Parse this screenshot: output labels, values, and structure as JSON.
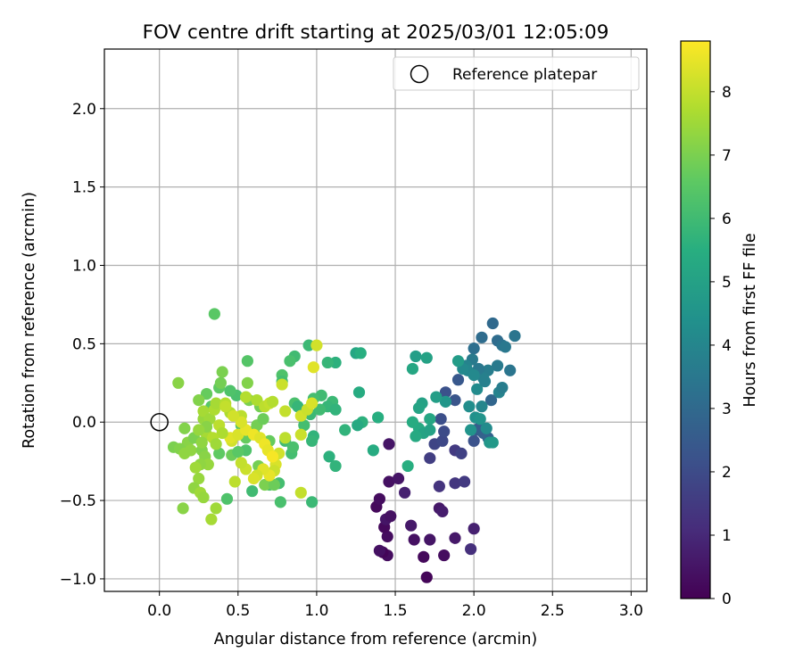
{
  "chart_data": {
    "type": "scatter",
    "title": "FOV centre drift starting at 2025/03/01 12:05:09",
    "xlabel": "Angular distance from reference (arcmin)",
    "ylabel": "Rotation from reference (arcmin)",
    "xlim": [
      -0.35,
      3.1
    ],
    "ylim": [
      -1.08,
      2.38
    ],
    "xticks": [
      0.0,
      0.5,
      1.0,
      1.5,
      2.0,
      2.5,
      3.0
    ],
    "xtick_labels": [
      "0.0",
      "0.5",
      "1.0",
      "1.5",
      "2.0",
      "2.5",
      "3.0"
    ],
    "yticks": [
      -1.0,
      -0.5,
      0.0,
      0.5,
      1.0,
      1.5,
      2.0
    ],
    "ytick_labels": [
      "−1.0",
      "−0.5",
      "0.0",
      "0.5",
      "1.0",
      "1.5",
      "2.0"
    ],
    "grid": true,
    "legend": {
      "placement": "top-right",
      "entries": [
        "Reference platepar"
      ]
    },
    "reference_point": {
      "name": "Reference platepar",
      "x": 0.0,
      "y": 0.0
    },
    "colorbar": {
      "label": "Hours from first FF file",
      "range": [
        0,
        8.8
      ],
      "ticks": [
        0,
        1,
        2,
        3,
        4,
        5,
        6,
        7,
        8
      ],
      "tick_labels": [
        "0",
        "1",
        "2",
        "3",
        "4",
        "5",
        "6",
        "7",
        "8"
      ],
      "colormap": "viridis"
    },
    "points": [
      {
        "x": 1.7,
        "y": -0.99,
        "c": 0.1
      },
      {
        "x": 1.68,
        "y": -0.86,
        "c": 0.2
      },
      {
        "x": 1.45,
        "y": -0.85,
        "c": 0.3
      },
      {
        "x": 1.42,
        "y": -0.83,
        "c": 0.1
      },
      {
        "x": 1.4,
        "y": -0.82,
        "c": 0.4
      },
      {
        "x": 1.81,
        "y": -0.85,
        "c": 0.3
      },
      {
        "x": 1.72,
        "y": -0.75,
        "c": 0.5
      },
      {
        "x": 1.88,
        "y": -0.74,
        "c": 0.6
      },
      {
        "x": 1.62,
        "y": -0.75,
        "c": 0.4
      },
      {
        "x": 1.45,
        "y": -0.73,
        "c": 0.3
      },
      {
        "x": 1.43,
        "y": -0.67,
        "c": 0.2
      },
      {
        "x": 1.44,
        "y": -0.62,
        "c": 0.5
      },
      {
        "x": 1.47,
        "y": -0.6,
        "c": 0.4
      },
      {
        "x": 1.6,
        "y": -0.66,
        "c": 0.6
      },
      {
        "x": 2.0,
        "y": -0.68,
        "c": 0.8
      },
      {
        "x": 1.38,
        "y": -0.54,
        "c": 0.2
      },
      {
        "x": 1.4,
        "y": -0.49,
        "c": 0.3
      },
      {
        "x": 1.46,
        "y": -0.38,
        "c": 0.4
      },
      {
        "x": 1.52,
        "y": -0.36,
        "c": 0.5
      },
      {
        "x": 1.78,
        "y": -0.55,
        "c": 0.6
      },
      {
        "x": 1.8,
        "y": -0.57,
        "c": 0.7
      },
      {
        "x": 1.56,
        "y": -0.45,
        "c": 0.8
      },
      {
        "x": 1.46,
        "y": -0.14,
        "c": 0.5
      },
      {
        "x": 1.98,
        "y": -0.81,
        "c": 1.2
      },
      {
        "x": 1.78,
        "y": -0.41,
        "c": 1.3
      },
      {
        "x": 1.88,
        "y": -0.39,
        "c": 1.4
      },
      {
        "x": 1.94,
        "y": -0.38,
        "c": 1.5
      },
      {
        "x": 1.72,
        "y": -0.23,
        "c": 1.6
      },
      {
        "x": 1.88,
        "y": -0.18,
        "c": 1.5
      },
      {
        "x": 1.92,
        "y": -0.2,
        "c": 1.7
      },
      {
        "x": 1.75,
        "y": -0.14,
        "c": 1.8
      },
      {
        "x": 1.8,
        "y": -0.12,
        "c": 1.9
      },
      {
        "x": 1.81,
        "y": -0.06,
        "c": 2.0
      },
      {
        "x": 1.79,
        "y": 0.02,
        "c": 2.1
      },
      {
        "x": 1.82,
        "y": 0.19,
        "c": 2.2
      },
      {
        "x": 1.88,
        "y": 0.14,
        "c": 2.3
      },
      {
        "x": 1.9,
        "y": 0.27,
        "c": 2.4
      },
      {
        "x": 2.0,
        "y": -0.12,
        "c": 2.2
      },
      {
        "x": 2.02,
        "y": -0.05,
        "c": 2.5
      },
      {
        "x": 2.03,
        "y": -0.04,
        "c": 2.6
      },
      {
        "x": 2.06,
        "y": -0.07,
        "c": 2.7
      },
      {
        "x": 2.09,
        "y": -0.1,
        "c": 2.8
      },
      {
        "x": 2.11,
        "y": 0.14,
        "c": 2.9
      },
      {
        "x": 2.12,
        "y": 0.63,
        "c": 3.0
      },
      {
        "x": 2.05,
        "y": 0.54,
        "c": 3.1
      },
      {
        "x": 2.0,
        "y": 0.47,
        "c": 3.2
      },
      {
        "x": 2.15,
        "y": 0.52,
        "c": 3.1
      },
      {
        "x": 2.18,
        "y": 0.49,
        "c": 3.3
      },
      {
        "x": 2.26,
        "y": 0.55,
        "c": 3.4
      },
      {
        "x": 2.2,
        "y": 0.48,
        "c": 3.5
      },
      {
        "x": 2.23,
        "y": 0.33,
        "c": 3.4
      },
      {
        "x": 2.15,
        "y": 0.36,
        "c": 3.6
      },
      {
        "x": 2.09,
        "y": 0.33,
        "c": 3.7
      },
      {
        "x": 2.06,
        "y": 0.28,
        "c": 3.8
      },
      {
        "x": 2.03,
        "y": 0.34,
        "c": 3.5
      },
      {
        "x": 1.99,
        "y": 0.4,
        "c": 3.6
      },
      {
        "x": 1.95,
        "y": 0.36,
        "c": 3.9
      },
      {
        "x": 1.96,
        "y": 0.33,
        "c": 4.0
      },
      {
        "x": 2.0,
        "y": 0.3,
        "c": 4.1
      },
      {
        "x": 2.02,
        "y": 0.21,
        "c": 4.2
      },
      {
        "x": 2.05,
        "y": 0.1,
        "c": 4.0
      },
      {
        "x": 1.97,
        "y": 0.1,
        "c": 4.3
      },
      {
        "x": 2.07,
        "y": 0.26,
        "c": 3.8
      },
      {
        "x": 2.16,
        "y": 0.19,
        "c": 3.9
      },
      {
        "x": 2.18,
        "y": 0.22,
        "c": 3.7
      },
      {
        "x": 2.01,
        "y": 0.03,
        "c": 4.4
      },
      {
        "x": 2.04,
        "y": 0.02,
        "c": 4.5
      },
      {
        "x": 2.08,
        "y": -0.04,
        "c": 4.2
      },
      {
        "x": 2.1,
        "y": -0.13,
        "c": 4.6
      },
      {
        "x": 2.12,
        "y": -0.13,
        "c": 4.7
      },
      {
        "x": 1.98,
        "y": -0.05,
        "c": 4.5
      },
      {
        "x": 1.93,
        "y": 0.34,
        "c": 4.1
      },
      {
        "x": 1.9,
        "y": 0.39,
        "c": 4.8
      },
      {
        "x": 1.82,
        "y": 0.13,
        "c": 4.6
      },
      {
        "x": 1.76,
        "y": 0.16,
        "c": 4.9
      },
      {
        "x": 1.67,
        "y": 0.12,
        "c": 5.0
      },
      {
        "x": 1.65,
        "y": 0.09,
        "c": 5.1
      },
      {
        "x": 1.63,
        "y": 0.42,
        "c": 4.9
      },
      {
        "x": 1.61,
        "y": 0.34,
        "c": 5.2
      },
      {
        "x": 1.7,
        "y": 0.41,
        "c": 5.0
      },
      {
        "x": 1.72,
        "y": 0.02,
        "c": 5.2
      },
      {
        "x": 1.65,
        "y": -0.04,
        "c": 5.3
      },
      {
        "x": 1.68,
        "y": -0.07,
        "c": 5.1
      },
      {
        "x": 1.61,
        "y": 0.0,
        "c": 5.4
      },
      {
        "x": 1.63,
        "y": -0.09,
        "c": 5.3
      },
      {
        "x": 1.58,
        "y": -0.28,
        "c": 5.5
      },
      {
        "x": 1.72,
        "y": -0.05,
        "c": 5.0
      },
      {
        "x": 1.36,
        "y": -0.18,
        "c": 5.4
      },
      {
        "x": 1.39,
        "y": 0.03,
        "c": 5.5
      },
      {
        "x": 1.29,
        "y": 0.0,
        "c": 5.6
      },
      {
        "x": 1.26,
        "y": -0.02,
        "c": 5.3
      },
      {
        "x": 1.27,
        "y": 0.19,
        "c": 5.4
      },
      {
        "x": 1.25,
        "y": 0.44,
        "c": 5.2
      },
      {
        "x": 1.28,
        "y": 0.44,
        "c": 5.5
      },
      {
        "x": 1.12,
        "y": 0.38,
        "c": 5.6
      },
      {
        "x": 1.07,
        "y": 0.38,
        "c": 5.8
      },
      {
        "x": 1.18,
        "y": -0.05,
        "c": 5.7
      },
      {
        "x": 1.1,
        "y": 0.13,
        "c": 5.9
      },
      {
        "x": 1.07,
        "y": 0.1,
        "c": 5.8
      },
      {
        "x": 1.12,
        "y": 0.08,
        "c": 5.7
      },
      {
        "x": 1.03,
        "y": 0.17,
        "c": 6.0
      },
      {
        "x": 0.98,
        "y": 0.15,
        "c": 6.1
      },
      {
        "x": 0.95,
        "y": 0.49,
        "c": 5.9
      },
      {
        "x": 0.86,
        "y": 0.42,
        "c": 6.0
      },
      {
        "x": 0.83,
        "y": 0.39,
        "c": 6.2
      },
      {
        "x": 0.78,
        "y": 0.3,
        "c": 6.3
      },
      {
        "x": 0.78,
        "y": 0.26,
        "c": 6.1
      },
      {
        "x": 0.86,
        "y": 0.12,
        "c": 6.2
      },
      {
        "x": 0.88,
        "y": 0.1,
        "c": 5.8
      },
      {
        "x": 0.92,
        "y": -0.02,
        "c": 6.1
      },
      {
        "x": 0.96,
        "y": 0.05,
        "c": 5.9
      },
      {
        "x": 1.02,
        "y": 0.08,
        "c": 6.0
      },
      {
        "x": 0.98,
        "y": -0.09,
        "c": 5.7
      },
      {
        "x": 0.97,
        "y": -0.12,
        "c": 5.8
      },
      {
        "x": 1.08,
        "y": -0.22,
        "c": 5.6
      },
      {
        "x": 1.12,
        "y": -0.28,
        "c": 5.7
      },
      {
        "x": 0.97,
        "y": -0.51,
        "c": 5.9
      },
      {
        "x": 0.77,
        "y": -0.51,
        "c": 6.2
      },
      {
        "x": 0.8,
        "y": -0.12,
        "c": 6.0
      },
      {
        "x": 0.84,
        "y": -0.2,
        "c": 6.1
      },
      {
        "x": 0.85,
        "y": -0.16,
        "c": 6.2
      },
      {
        "x": 0.7,
        "y": -0.4,
        "c": 6.3
      },
      {
        "x": 0.76,
        "y": -0.39,
        "c": 6.1
      },
      {
        "x": 0.59,
        "y": -0.44,
        "c": 6.0
      },
      {
        "x": 0.55,
        "y": -0.18,
        "c": 6.3
      },
      {
        "x": 0.52,
        "y": -0.02,
        "c": 6.4
      },
      {
        "x": 0.49,
        "y": 0.17,
        "c": 6.2
      },
      {
        "x": 0.45,
        "y": 0.2,
        "c": 6.3
      },
      {
        "x": 0.56,
        "y": 0.39,
        "c": 6.4
      },
      {
        "x": 0.35,
        "y": 0.69,
        "c": 6.5
      },
      {
        "x": 0.43,
        "y": -0.49,
        "c": 6.3
      },
      {
        "x": 0.38,
        "y": 0.22,
        "c": 6.6
      },
      {
        "x": 0.3,
        "y": 0.18,
        "c": 6.7
      },
      {
        "x": 0.33,
        "y": 0.1,
        "c": 6.5
      },
      {
        "x": 0.38,
        "y": -0.2,
        "c": 6.6
      },
      {
        "x": 0.46,
        "y": -0.21,
        "c": 6.8
      },
      {
        "x": 0.5,
        "y": -0.19,
        "c": 6.5
      },
      {
        "x": 0.55,
        "y": -0.1,
        "c": 6.7
      },
      {
        "x": 0.6,
        "y": -0.06,
        "c": 6.6
      },
      {
        "x": 0.62,
        "y": -0.02,
        "c": 6.9
      },
      {
        "x": 0.66,
        "y": 0.02,
        "c": 6.8
      },
      {
        "x": 0.7,
        "y": -0.12,
        "c": 6.7
      },
      {
        "x": 0.63,
        "y": -0.28,
        "c": 6.9
      },
      {
        "x": 0.67,
        "y": -0.4,
        "c": 7.0
      },
      {
        "x": 0.73,
        "y": -0.4,
        "c": 6.8
      },
      {
        "x": 0.64,
        "y": 0.1,
        "c": 6.9
      },
      {
        "x": 0.57,
        "y": 0.14,
        "c": 7.0
      },
      {
        "x": 0.56,
        "y": 0.25,
        "c": 7.1
      },
      {
        "x": 0.4,
        "y": 0.32,
        "c": 7.0
      },
      {
        "x": 0.39,
        "y": 0.25,
        "c": 6.9
      },
      {
        "x": 0.25,
        "y": 0.14,
        "c": 7.1
      },
      {
        "x": 0.12,
        "y": 0.25,
        "c": 7.2
      },
      {
        "x": 0.16,
        "y": -0.04,
        "c": 7.1
      },
      {
        "x": 0.18,
        "y": -0.13,
        "c": 7.2
      },
      {
        "x": 0.22,
        "y": -0.1,
        "c": 7.0
      },
      {
        "x": 0.2,
        "y": -0.18,
        "c": 7.3
      },
      {
        "x": 0.27,
        "y": -0.18,
        "c": 7.1
      },
      {
        "x": 0.29,
        "y": -0.22,
        "c": 7.2
      },
      {
        "x": 0.31,
        "y": -0.27,
        "c": 7.4
      },
      {
        "x": 0.26,
        "y": -0.27,
        "c": 7.3
      },
      {
        "x": 0.23,
        "y": -0.29,
        "c": 7.5
      },
      {
        "x": 0.25,
        "y": -0.36,
        "c": 7.4
      },
      {
        "x": 0.22,
        "y": -0.42,
        "c": 7.3
      },
      {
        "x": 0.26,
        "y": -0.45,
        "c": 7.5
      },
      {
        "x": 0.28,
        "y": -0.48,
        "c": 7.4
      },
      {
        "x": 0.15,
        "y": -0.55,
        "c": 7.2
      },
      {
        "x": 0.33,
        "y": -0.62,
        "c": 7.6
      },
      {
        "x": 0.36,
        "y": -0.55,
        "c": 7.5
      },
      {
        "x": 0.09,
        "y": -0.16,
        "c": 7.0
      },
      {
        "x": 0.13,
        "y": -0.17,
        "c": 7.1
      },
      {
        "x": 0.16,
        "y": -0.2,
        "c": 7.3
      },
      {
        "x": 0.28,
        "y": 0.02,
        "c": 7.4
      },
      {
        "x": 0.28,
        "y": 0.07,
        "c": 7.6
      },
      {
        "x": 0.32,
        "y": 0.02,
        "c": 7.5
      },
      {
        "x": 0.35,
        "y": 0.08,
        "c": 7.7
      },
      {
        "x": 0.36,
        "y": 0.12,
        "c": 7.6
      },
      {
        "x": 0.42,
        "y": 0.12,
        "c": 7.8
      },
      {
        "x": 0.45,
        "y": 0.06,
        "c": 7.7
      },
      {
        "x": 0.52,
        "y": 0.04,
        "c": 7.9
      },
      {
        "x": 0.55,
        "y": 0.16,
        "c": 7.8
      },
      {
        "x": 0.62,
        "y": 0.14,
        "c": 7.7
      },
      {
        "x": 0.67,
        "y": 0.1,
        "c": 7.9
      },
      {
        "x": 0.7,
        "y": 0.12,
        "c": 8.0
      },
      {
        "x": 0.72,
        "y": 0.13,
        "c": 7.8
      },
      {
        "x": 0.78,
        "y": 0.24,
        "c": 8.1
      },
      {
        "x": 0.8,
        "y": 0.07,
        "c": 8.0
      },
      {
        "x": 0.9,
        "y": 0.04,
        "c": 8.2
      },
      {
        "x": 0.94,
        "y": 0.08,
        "c": 8.1
      },
      {
        "x": 0.97,
        "y": 0.12,
        "c": 8.3
      },
      {
        "x": 0.98,
        "y": 0.35,
        "c": 8.4
      },
      {
        "x": 1.0,
        "y": 0.49,
        "c": 8.2
      },
      {
        "x": 0.9,
        "y": -0.08,
        "c": 8.1
      },
      {
        "x": 0.9,
        "y": -0.45,
        "c": 8.0
      },
      {
        "x": 0.8,
        "y": -0.1,
        "c": 7.9
      },
      {
        "x": 0.76,
        "y": -0.2,
        "c": 8.2
      },
      {
        "x": 0.74,
        "y": -0.27,
        "c": 8.3
      },
      {
        "x": 0.73,
        "y": -0.31,
        "c": 8.1
      },
      {
        "x": 0.7,
        "y": -0.34,
        "c": 8.5
      },
      {
        "x": 0.66,
        "y": -0.3,
        "c": 8.4
      },
      {
        "x": 0.62,
        "y": -0.34,
        "c": 8.2
      },
      {
        "x": 0.6,
        "y": -0.36,
        "c": 8.3
      },
      {
        "x": 0.55,
        "y": -0.3,
        "c": 8.1
      },
      {
        "x": 0.52,
        "y": -0.26,
        "c": 8.0
      },
      {
        "x": 0.48,
        "y": -0.38,
        "c": 7.9
      },
      {
        "x": 0.46,
        "y": -0.12,
        "c": 8.2
      },
      {
        "x": 0.45,
        "y": -0.1,
        "c": 8.4
      },
      {
        "x": 0.5,
        "y": -0.08,
        "c": 8.3
      },
      {
        "x": 0.55,
        "y": -0.05,
        "c": 8.5
      },
      {
        "x": 0.6,
        "y": -0.08,
        "c": 8.6
      },
      {
        "x": 0.64,
        "y": -0.1,
        "c": 8.4
      },
      {
        "x": 0.67,
        "y": -0.14,
        "c": 8.6
      },
      {
        "x": 0.69,
        "y": -0.18,
        "c": 8.5
      },
      {
        "x": 0.72,
        "y": -0.22,
        "c": 8.7
      },
      {
        "x": 0.52,
        "y": 0.0,
        "c": 8.3
      },
      {
        "x": 0.47,
        "y": 0.04,
        "c": 8.2
      },
      {
        "x": 0.42,
        "y": 0.1,
        "c": 8.0
      },
      {
        "x": 0.38,
        "y": -0.02,
        "c": 7.9
      },
      {
        "x": 0.4,
        "y": -0.07,
        "c": 7.7
      },
      {
        "x": 0.3,
        "y": -0.08,
        "c": 7.6
      },
      {
        "x": 0.34,
        "y": -0.1,
        "c": 7.8
      },
      {
        "x": 0.36,
        "y": -0.14,
        "c": 7.5
      },
      {
        "x": 0.27,
        "y": -0.13,
        "c": 7.3
      },
      {
        "x": 0.3,
        "y": -0.03,
        "c": 7.2
      },
      {
        "x": 0.25,
        "y": -0.05,
        "c": 7.4
      }
    ]
  }
}
